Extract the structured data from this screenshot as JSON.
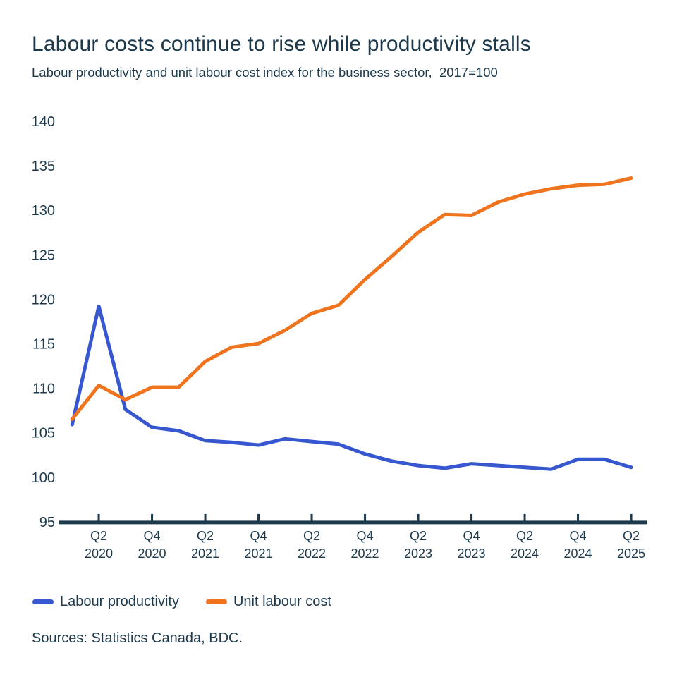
{
  "header": {
    "title": "Labour costs continue to rise while productivity stalls",
    "subtitle": "Labour productivity and unit labour cost index for the business sector,  2017=100"
  },
  "chart_data": {
    "type": "line",
    "title": "Labour costs continue to rise while productivity stalls",
    "subtitle": "Labour productivity and unit labour cost index for the business sector, 2017=100",
    "x_axis_note": "quarterly, Q1 2020 to Q2 2025",
    "categories": [
      "Q1 2020",
      "Q2 2020",
      "Q3 2020",
      "Q4 2020",
      "Q1 2021",
      "Q2 2021",
      "Q3 2021",
      "Q4 2021",
      "Q1 2022",
      "Q2 2022",
      "Q3 2022",
      "Q4 2022",
      "Q1 2023",
      "Q2 2023",
      "Q3 2023",
      "Q4 2023",
      "Q1 2024",
      "Q2 2024",
      "Q3 2024",
      "Q4 2024",
      "Q1 2025",
      "Q2 2025"
    ],
    "series": [
      {
        "name": "Labour productivity",
        "color": "#3657d0",
        "values": [
          106.0,
          119.3,
          107.7,
          105.7,
          105.3,
          104.2,
          104.0,
          103.7,
          104.4,
          104.1,
          103.8,
          102.7,
          101.9,
          101.4,
          101.1,
          101.6,
          101.4,
          101.2,
          101.0,
          102.1,
          102.1,
          101.2
        ]
      },
      {
        "name": "Unit labour cost",
        "color": "#f0731d",
        "values": [
          106.6,
          110.4,
          108.8,
          110.2,
          110.2,
          113.1,
          114.7,
          115.1,
          116.6,
          118.5,
          119.4,
          122.3,
          124.9,
          127.6,
          129.6,
          129.5,
          131.0,
          131.9,
          132.5,
          132.9,
          133.0,
          133.7
        ]
      }
    ],
    "y_ticks": [
      140,
      135,
      130,
      125,
      120,
      115,
      110,
      105,
      100,
      95
    ],
    "ylim": [
      95,
      140
    ],
    "x_tick_start_index": 1,
    "x_tick_every": 2,
    "grid": false,
    "legend_position": "bottom",
    "axis_color": "#1d3a4d"
  },
  "footer": {
    "sources": "Sources: Statistics Canada, BDC."
  }
}
